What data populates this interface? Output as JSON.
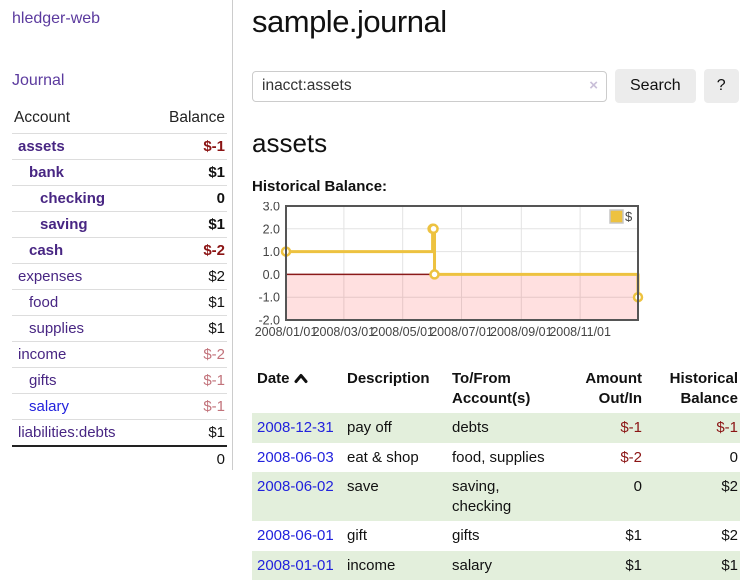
{
  "app": {
    "brand": "hledger-web",
    "nav_journal": "Journal"
  },
  "sidebar": {
    "header": {
      "account": "Account",
      "balance": "Balance"
    },
    "accounts": [
      {
        "name": "assets",
        "balance": "$-1",
        "indent": 1,
        "bold": true,
        "balance_class": "negative"
      },
      {
        "name": "bank",
        "balance": "$1",
        "indent": 2,
        "bold": true,
        "balance_class": "normal"
      },
      {
        "name": "checking",
        "balance": "0",
        "indent": 3,
        "bold": true,
        "balance_class": "normal"
      },
      {
        "name": "saving",
        "balance": "$1",
        "indent": 3,
        "bold": true,
        "balance_class": "normal"
      },
      {
        "name": "cash",
        "balance": "$-2",
        "indent": 2,
        "bold": true,
        "balance_class": "negative"
      },
      {
        "name": "expenses",
        "balance": "$2",
        "indent": 1,
        "bold": false,
        "balance_class": "normal"
      },
      {
        "name": "food",
        "balance": "$1",
        "indent": 2,
        "bold": false,
        "balance_class": "normal"
      },
      {
        "name": "supplies",
        "balance": "$1",
        "indent": 2,
        "bold": false,
        "balance_class": "normal"
      },
      {
        "name": "income",
        "balance": "$-2",
        "indent": 1,
        "bold": false,
        "balance_class": "muted-negative"
      },
      {
        "name": "gifts",
        "balance": "$-1",
        "indent": 2,
        "bold": false,
        "balance_class": "muted-negative"
      },
      {
        "name": "salary",
        "balance": "$-1",
        "indent": 2,
        "bold": false,
        "balance_class": "muted-negative",
        "link_color": "blue"
      },
      {
        "name": "liabilities:debts",
        "balance": "$1",
        "indent": 1,
        "bold": false,
        "balance_class": "normal"
      }
    ],
    "total": "0"
  },
  "header": {
    "title": "sample.journal"
  },
  "search": {
    "value": "inacct:assets",
    "clear_icon": "×",
    "button_label": "Search",
    "help_label": "?"
  },
  "account_page": {
    "heading": "assets",
    "chart_title": "Historical Balance:"
  },
  "chart_data": {
    "type": "line",
    "style": "step-with-markers",
    "title": "Historical Balance",
    "legend": [
      "$"
    ],
    "legend_position": "top-right",
    "x_range": [
      "2008-01-01",
      "2008-12-31"
    ],
    "x_ticks": [
      "2008/01/01",
      "2008/03/01",
      "2008/05/01",
      "2008/07/01",
      "2008/09/01",
      "2008/11/01"
    ],
    "y_range": [
      -2,
      3
    ],
    "y_ticks": [
      "3.0",
      "2.0",
      "1.0",
      "0.0",
      "-1.0",
      "-2.0"
    ],
    "grid": true,
    "series": [
      {
        "name": "$",
        "color": "#edc240",
        "points": [
          {
            "x": "2008-01-01",
            "y": 1
          },
          {
            "x": "2008-06-01",
            "y": 2
          },
          {
            "x": "2008-06-02",
            "y": 2
          },
          {
            "x": "2008-06-03",
            "y": 0
          },
          {
            "x": "2008-12-31",
            "y": -1
          }
        ]
      }
    ],
    "negative_region_color": "rgba(255,0,0,0.12)",
    "zero_line_color": "#8b1a1a",
    "grid_color": "#e3e3e3",
    "border_color": "#555"
  },
  "register": {
    "columns": [
      "Date",
      "Description",
      "To/From Account(s)",
      "Amount Out/In",
      "Historical Balance"
    ],
    "rows": [
      {
        "date": "2008-12-31",
        "description": "pay off",
        "accounts": "debts",
        "amount": "$-1",
        "amount_class": "neg",
        "balance": "$-1",
        "balance_class": "neg",
        "striped": true
      },
      {
        "date": "2008-06-03",
        "description": "eat & shop",
        "accounts": "food, supplies",
        "amount": "$-2",
        "amount_class": "neg",
        "balance": "0",
        "balance_class": "normal",
        "striped": false
      },
      {
        "date": "2008-06-02",
        "description": "save",
        "accounts": "saving, checking",
        "amount": "0",
        "amount_class": "normal",
        "balance": "$2",
        "balance_class": "normal",
        "striped": true
      },
      {
        "date": "2008-06-01",
        "description": "gift",
        "accounts": "gifts",
        "amount": "$1",
        "amount_class": "normal",
        "balance": "$2",
        "balance_class": "normal",
        "striped": false
      },
      {
        "date": "2008-01-01",
        "description": "income",
        "accounts": "salary",
        "amount": "$1",
        "amount_class": "normal",
        "balance": "$1",
        "balance_class": "normal",
        "striped": true
      }
    ]
  },
  "colors": {
    "link_purple": "#5b3a9e",
    "account_purple": "#482683",
    "link_blue": "#2222dd",
    "negative_red": "#8b1414",
    "muted_negative": "#c2737b",
    "row_stripe_green": "#e3efdc",
    "chart_line": "#edc240"
  }
}
